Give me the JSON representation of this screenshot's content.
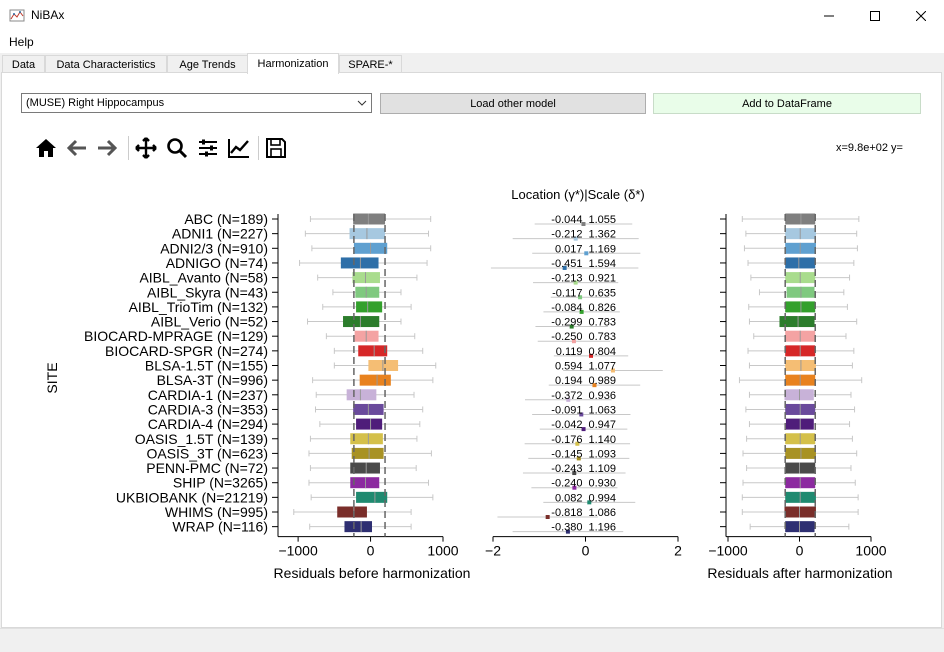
{
  "window": {
    "title": "NiBAx"
  },
  "menu": {
    "help": "Help"
  },
  "tabs": [
    {
      "label": "Data"
    },
    {
      "label": "Data Characteristics"
    },
    {
      "label": "Age Trends"
    },
    {
      "label": "Harmonization"
    },
    {
      "label": "SPARE-*"
    }
  ],
  "controls": {
    "roi_select": "(MUSE) Right Hippocampus",
    "load_button": "Load other model",
    "add_button": "Add to DataFrame"
  },
  "toolbar": {
    "icons": [
      "home-icon",
      "back-icon",
      "forward-icon",
      "pan-icon",
      "zoom-icon",
      "configure-subplots-icon",
      "edit-axis-icon",
      "save-icon"
    ],
    "coords": "x=9.8e+02 y="
  },
  "chart_data": {
    "type": "boxplot-panel",
    "ylabel": "SITE",
    "sites": [
      {
        "label": "ABC (N=189)",
        "color": "#7f7f7f",
        "gamma": "-0.044",
        "delta": "1.055",
        "g": -0.044,
        "d": 1.055,
        "before": [
          -240,
          -30,
          200,
          -830,
          830
        ],
        "after": [
          -200,
          20,
          220,
          -800,
          830
        ]
      },
      {
        "label": "ADNI1 (N=227)",
        "color": "#a6c8e0",
        "gamma": "-0.212",
        "delta": "1.362",
        "g": -0.212,
        "d": 1.362,
        "before": [
          -290,
          -50,
          200,
          -900,
          800
        ],
        "after": [
          -200,
          10,
          230,
          -750,
          800
        ]
      },
      {
        "label": "ADNI2/3 (N=910)",
        "color": "#5fa0d0",
        "gamma": "0.017",
        "delta": "1.169",
        "g": 0.017,
        "d": 1.169,
        "before": [
          -230,
          0,
          230,
          -810,
          830
        ],
        "after": [
          -200,
          10,
          230,
          -770,
          810
        ]
      },
      {
        "label": "ADNIGO (N=74)",
        "color": "#2e6fa8",
        "gamma": "-0.451",
        "delta": "1.594",
        "g": -0.451,
        "d": 1.594,
        "before": [
          -410,
          -140,
          110,
          -980,
          780
        ],
        "after": [
          -200,
          -10,
          220,
          -720,
          760
        ]
      },
      {
        "label": "AIBL_Avanto (N=58)",
        "color": "#a9dc8d",
        "gamma": "-0.213",
        "delta": "0.921",
        "g": -0.213,
        "d": 0.921,
        "before": [
          -250,
          -70,
          130,
          -730,
          640
        ],
        "after": [
          -200,
          10,
          220,
          -680,
          700
        ]
      },
      {
        "label": "AIBL_Skyra (N=43)",
        "color": "#7fc97f",
        "gamma": "-0.117",
        "delta": "0.635",
        "g": -0.117,
        "d": 0.635,
        "before": [
          -210,
          -60,
          120,
          -520,
          420
        ],
        "after": [
          -180,
          20,
          210,
          -560,
          620
        ]
      },
      {
        "label": "AIBL_TrioTim (N=132)",
        "color": "#33a02c",
        "gamma": "-0.084",
        "delta": "0.826",
        "g": -0.084,
        "d": 0.826,
        "before": [
          -200,
          -40,
          160,
          -660,
          560
        ],
        "after": [
          -200,
          20,
          220,
          -710,
          670
        ]
      },
      {
        "label": "AIBL_Verio (N=52)",
        "color": "#2c7d2c",
        "gamma": "-0.299",
        "delta": "0.783",
        "g": -0.299,
        "d": 0.783,
        "before": [
          -380,
          -140,
          120,
          -870,
          420
        ],
        "after": [
          -280,
          -20,
          210,
          -700,
          800
        ]
      },
      {
        "label": "BIOCARD-MPRAGE (N=129)",
        "color": "#f4a3a3",
        "gamma": "-0.250",
        "delta": "0.783",
        "g": -0.25,
        "d": 0.783,
        "before": [
          -220,
          -60,
          110,
          -610,
          610
        ],
        "after": [
          -200,
          10,
          220,
          -640,
          650
        ]
      },
      {
        "label": "BIOCARD-SPGR (N=274)",
        "color": "#d62728",
        "gamma": "0.119",
        "delta": "0.804",
        "g": 0.119,
        "d": 0.804,
        "before": [
          -170,
          50,
          230,
          -500,
          720
        ],
        "after": [
          -200,
          10,
          220,
          -720,
          760
        ]
      },
      {
        "label": "BLSA-1.5T (N=155)",
        "color": "#f5be74",
        "gamma": "0.594",
        "delta": "1.077",
        "g": 0.594,
        "d": 1.077,
        "before": [
          -30,
          170,
          380,
          -500,
          900
        ],
        "after": [
          -200,
          20,
          230,
          -700,
          740
        ]
      },
      {
        "label": "BLSA-3T (N=996)",
        "color": "#e8821e",
        "gamma": "0.194",
        "delta": "0.989",
        "g": 0.194,
        "d": 0.989,
        "before": [
          -150,
          90,
          280,
          -800,
          860
        ],
        "after": [
          -200,
          10,
          220,
          -840,
          870
        ]
      },
      {
        "label": "CARDIA-1 (N=237)",
        "color": "#c8b2d8",
        "gamma": "-0.372",
        "delta": "0.936",
        "g": -0.372,
        "d": 0.936,
        "before": [
          -330,
          -140,
          80,
          -750,
          600
        ],
        "after": [
          -210,
          0,
          200,
          -700,
          720
        ]
      },
      {
        "label": "CARDIA-3 (N=353)",
        "color": "#6a4a9c",
        "gamma": "-0.091",
        "delta": "1.063",
        "g": -0.091,
        "d": 1.063,
        "before": [
          -240,
          -30,
          180,
          -760,
          720
        ],
        "after": [
          -200,
          10,
          220,
          -750,
          770
        ]
      },
      {
        "label": "CARDIA-4 (N=294)",
        "color": "#4f1d7a",
        "gamma": "-0.042",
        "delta": "0.947",
        "g": -0.042,
        "d": 0.947,
        "before": [
          -200,
          0,
          160,
          -700,
          680
        ],
        "after": [
          -190,
          10,
          200,
          -700,
          700
        ]
      },
      {
        "label": "OASIS_1.5T (N=139)",
        "color": "#d4c04a",
        "gamma": "-0.176",
        "delta": "1.140",
        "g": -0.176,
        "d": 1.14,
        "before": [
          -280,
          -30,
          170,
          -830,
          640
        ],
        "after": [
          -200,
          10,
          220,
          -740,
          740
        ]
      },
      {
        "label": "OASIS_3T (N=623)",
        "color": "#a89224",
        "gamma": "-0.145",
        "delta": "1.093",
        "g": -0.145,
        "d": 1.093,
        "before": [
          -260,
          -20,
          180,
          -850,
          840
        ],
        "after": [
          -200,
          20,
          230,
          -790,
          800
        ]
      },
      {
        "label": "PENN-PMC (N=72)",
        "color": "#4a4a4a",
        "gamma": "-0.243",
        "delta": "1.109",
        "g": -0.243,
        "d": 1.109,
        "before": [
          -280,
          -60,
          130,
          -830,
          630
        ],
        "after": [
          -200,
          0,
          220,
          -740,
          720
        ]
      },
      {
        "label": "SHIP (N=3265)",
        "color": "#8c2aa0",
        "gamma": "-0.240",
        "delta": "0.930",
        "g": -0.24,
        "d": 0.93,
        "before": [
          -280,
          -70,
          120,
          -850,
          800
        ],
        "after": [
          -200,
          10,
          220,
          -790,
          780
        ]
      },
      {
        "label": "UKBIOBANK (N=21219)",
        "color": "#1f8a70",
        "gamma": "0.082",
        "delta": "0.994",
        "g": 0.082,
        "d": 0.994,
        "before": [
          -200,
          60,
          230,
          -820,
          860
        ],
        "after": [
          -200,
          10,
          230,
          -800,
          820
        ]
      },
      {
        "label": "WHIMS (N=995)",
        "color": "#7a2e2a",
        "gamma": "-0.818",
        "delta": "1.086",
        "g": -0.818,
        "d": 1.086,
        "before": [
          -460,
          -230,
          -50,
          -1060,
          560
        ],
        "after": [
          -210,
          0,
          230,
          -800,
          820
        ]
      },
      {
        "label": "WRAP (N=116)",
        "color": "#2e2f72",
        "gamma": "-0.380",
        "delta": "1.196",
        "g": -0.38,
        "d": 1.196,
        "before": [
          -360,
          -130,
          20,
          -840,
          560
        ],
        "after": [
          -200,
          0,
          210,
          -690,
          690
        ]
      }
    ],
    "panels": {
      "before": {
        "xlabel": "Residuals before harmonization",
        "xlim": [
          -1250,
          1000
        ],
        "ticks": [
          -1000,
          0,
          1000
        ],
        "tick_labels": [
          "−1000",
          "0",
          "1000"
        ],
        "vlines": [
          -230,
          200
        ]
      },
      "params": {
        "title": "Location (γ*)|Scale (δ*)",
        "xlim": [
          -2,
          2
        ],
        "ticks": [
          -2,
          0,
          2
        ],
        "tick_labels": [
          "−2",
          "0",
          "2"
        ]
      },
      "after": {
        "xlabel": "Residuals after harmonization",
        "xlim": [
          -1000,
          1000
        ],
        "ticks": [
          -1000,
          0,
          1000
        ],
        "tick_labels": [
          "−1000",
          "0",
          "1000"
        ],
        "vlines": [
          -200,
          220
        ]
      }
    }
  }
}
